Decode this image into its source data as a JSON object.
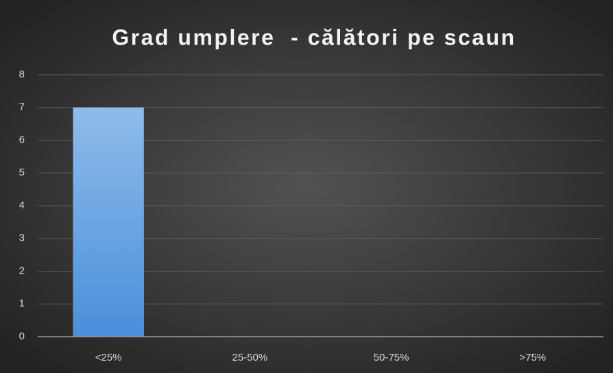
{
  "chart_data": {
    "type": "bar",
    "title": "Grad umplere  - călători pe scaun",
    "categories": [
      "<25%",
      "25-50%",
      "50-75%",
      ">75%"
    ],
    "values": [
      7,
      0,
      0,
      0
    ],
    "color": "#5b9bd5",
    "ylim": [
      0,
      8
    ],
    "yticks": [
      0,
      1,
      2,
      3,
      4,
      5,
      6,
      7,
      8
    ],
    "grid": true
  }
}
